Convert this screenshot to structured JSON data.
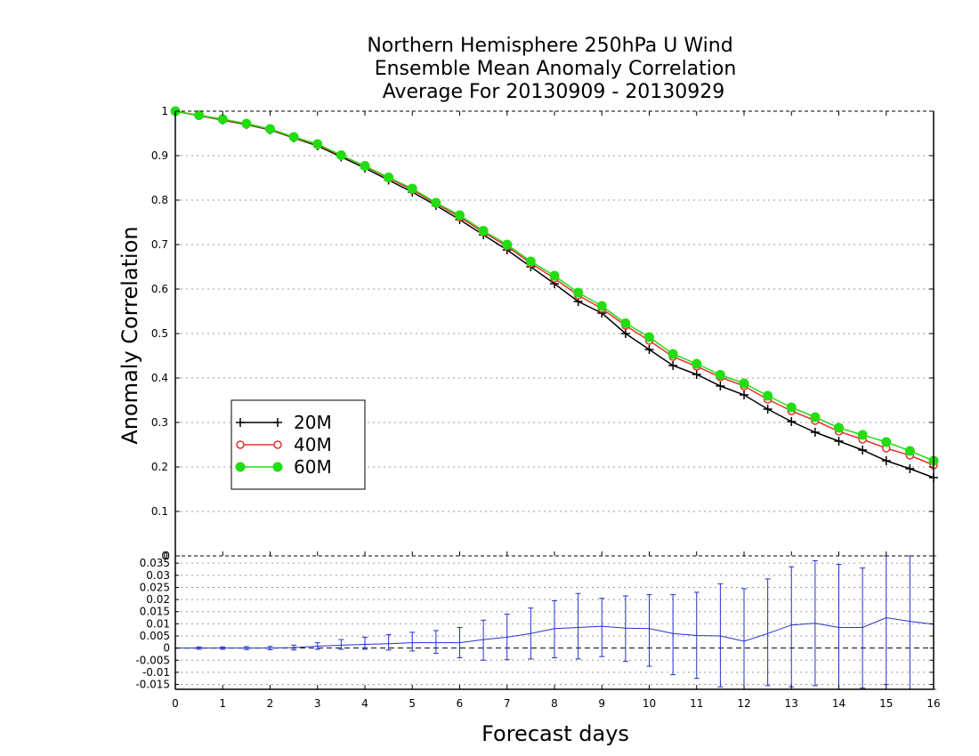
{
  "chart_data": [
    {
      "type": "line",
      "title": [
        "Northern Hemisphere 250hPa U Wind",
        "Ensemble Mean Anomaly Correlation",
        "Average For 20130909 - 20130929"
      ],
      "ylabel": "Anomaly Correlation",
      "xlim": [
        0,
        16
      ],
      "ylim": [
        0,
        1
      ],
      "yticks": [
        "0",
        "0.1",
        "0.2",
        "0.3",
        "0.4",
        "0.5",
        "0.6",
        "0.7",
        "0.8",
        "0.9",
        "1"
      ],
      "grid": true,
      "legend_position": "left",
      "x": [
        0,
        0.5,
        1,
        1.5,
        2,
        2.5,
        3,
        3.5,
        4,
        4.5,
        5,
        5.5,
        6,
        6.5,
        7,
        7.5,
        8,
        8.5,
        9,
        9.5,
        10,
        10.5,
        11,
        11.5,
        12,
        12.5,
        13,
        13.5,
        14,
        14.5,
        15,
        15.5,
        16
      ],
      "series": [
        {
          "name": "20M",
          "color": "#000000",
          "marker": "plus",
          "values": [
            1.0,
            0.99,
            0.98,
            0.97,
            0.958,
            0.94,
            0.922,
            0.897,
            0.872,
            0.845,
            0.818,
            0.788,
            0.756,
            0.722,
            0.688,
            0.65,
            0.612,
            0.572,
            0.546,
            0.5,
            0.464,
            0.428,
            0.408,
            0.382,
            0.362,
            0.33,
            0.302,
            0.278,
            0.258,
            0.238,
            0.214,
            0.196,
            0.176
          ]
        },
        {
          "name": "40M",
          "color": "#e83030",
          "marker": "open-circle",
          "values": [
            1.0,
            0.99,
            0.981,
            0.971,
            0.959,
            0.941,
            0.924,
            0.9,
            0.876,
            0.849,
            0.823,
            0.792,
            0.762,
            0.728,
            0.696,
            0.658,
            0.624,
            0.586,
            0.556,
            0.518,
            0.484,
            0.448,
            0.426,
            0.402,
            0.382,
            0.352,
            0.326,
            0.304,
            0.28,
            0.262,
            0.242,
            0.226,
            0.204
          ]
        },
        {
          "name": "60M",
          "color": "#22dd11",
          "marker": "filled-circle",
          "values": [
            1.0,
            0.991,
            0.982,
            0.972,
            0.96,
            0.942,
            0.926,
            0.901,
            0.877,
            0.851,
            0.826,
            0.794,
            0.766,
            0.731,
            0.7,
            0.662,
            0.63,
            0.592,
            0.562,
            0.523,
            0.492,
            0.454,
            0.432,
            0.407,
            0.388,
            0.36,
            0.334,
            0.312,
            0.288,
            0.272,
            0.256,
            0.236,
            0.214
          ]
        }
      ]
    },
    {
      "type": "line",
      "xlabel": "Forecast days",
      "xlim": [
        0,
        16
      ],
      "ylim": [
        -0.017,
        0.038
      ],
      "xticks": [
        "0",
        "1",
        "2",
        "3",
        "4",
        "5",
        "6",
        "7",
        "8",
        "9",
        "10",
        "11",
        "12",
        "13",
        "14",
        "15",
        "16"
      ],
      "yticks": [
        "-0.015",
        "-0.01",
        "-0.005",
        "0",
        "0.005",
        "0.01",
        "0.015",
        "0.02",
        "0.025",
        "0.03",
        "0.035"
      ],
      "top_tick": "0",
      "series": [
        {
          "color": "#2233cc",
          "x": [
            0.5,
            1,
            1.5,
            2,
            2.5,
            3,
            3.5,
            4,
            4.5,
            5,
            5.5,
            6,
            6.5,
            7,
            7.5,
            8,
            8.5,
            9,
            9.5,
            10,
            10.5,
            11,
            11.5,
            12,
            12.5,
            13,
            13.5,
            14,
            14.5,
            15,
            15.5,
            16
          ],
          "values": [
            0.0,
            0.0,
            0.0,
            0.0,
            0.0002,
            0.0008,
            0.0012,
            0.0015,
            0.0018,
            0.0022,
            0.0022,
            0.0022,
            0.0035,
            0.0045,
            0.006,
            0.008,
            0.0085,
            0.009,
            0.0082,
            0.008,
            0.006,
            0.0052,
            0.005,
            0.0028,
            0.006,
            0.0095,
            0.0102,
            0.0085,
            0.0085,
            0.0125,
            0.011,
            0.0098
          ],
          "error_low": [
            -0.0005,
            -0.0005,
            -0.0006,
            -0.0007,
            -0.0008,
            -0.0005,
            -0.0005,
            -0.0005,
            -0.0008,
            -0.0012,
            -0.0022,
            -0.004,
            -0.005,
            -0.0048,
            -0.0045,
            -0.004,
            -0.0045,
            -0.0035,
            -0.0055,
            -0.0075,
            -0.011,
            -0.0125,
            -0.016,
            -0.017,
            -0.0155,
            -0.016,
            -0.0155,
            -0.017,
            -0.0165,
            -0.015,
            -0.017,
            -0.017
          ],
          "error_high": [
            0.0005,
            0.0005,
            0.0006,
            0.0007,
            0.0012,
            0.0022,
            0.0035,
            0.0045,
            0.0055,
            0.0065,
            0.0072,
            0.0085,
            0.0115,
            0.014,
            0.0165,
            0.0195,
            0.0225,
            0.0205,
            0.0215,
            0.022,
            0.022,
            0.023,
            0.0265,
            0.0245,
            0.0285,
            0.0335,
            0.036,
            0.0345,
            0.033,
            0.038,
            0.038,
            0.038
          ]
        }
      ]
    }
  ]
}
